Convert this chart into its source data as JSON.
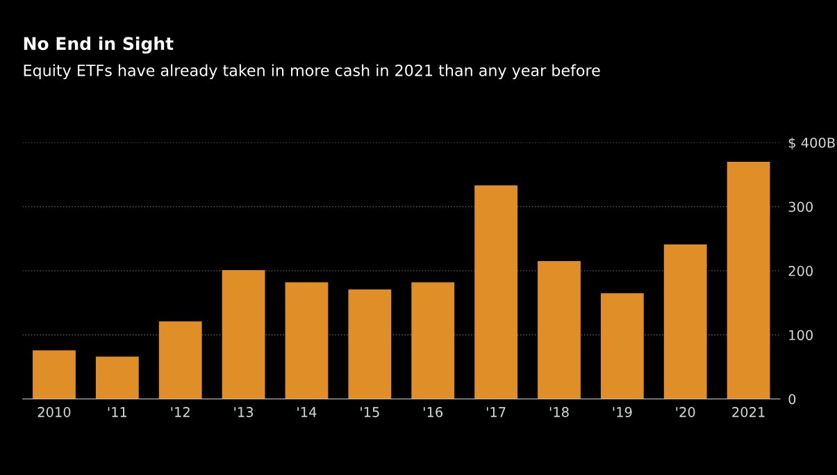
{
  "chart_data": {
    "type": "bar",
    "title": "No End in Sight",
    "subtitle": "Equity ETFs have already taken in more cash in 2021 than any year before",
    "categories": [
      "2010",
      "'11",
      "'12",
      "'13",
      "'14",
      "'15",
      "'16",
      "'17",
      "'18",
      "'19",
      "'20",
      "2021"
    ],
    "values": [
      76,
      66,
      121,
      201,
      182,
      171,
      182,
      333,
      215,
      165,
      241,
      370
    ],
    "color": "#e08e27",
    "ylim": [
      0,
      400
    ],
    "yticks": [
      0,
      100,
      200,
      300,
      {
        "value": 400,
        "label": "$ 400B"
      }
    ],
    "grid": "y"
  }
}
